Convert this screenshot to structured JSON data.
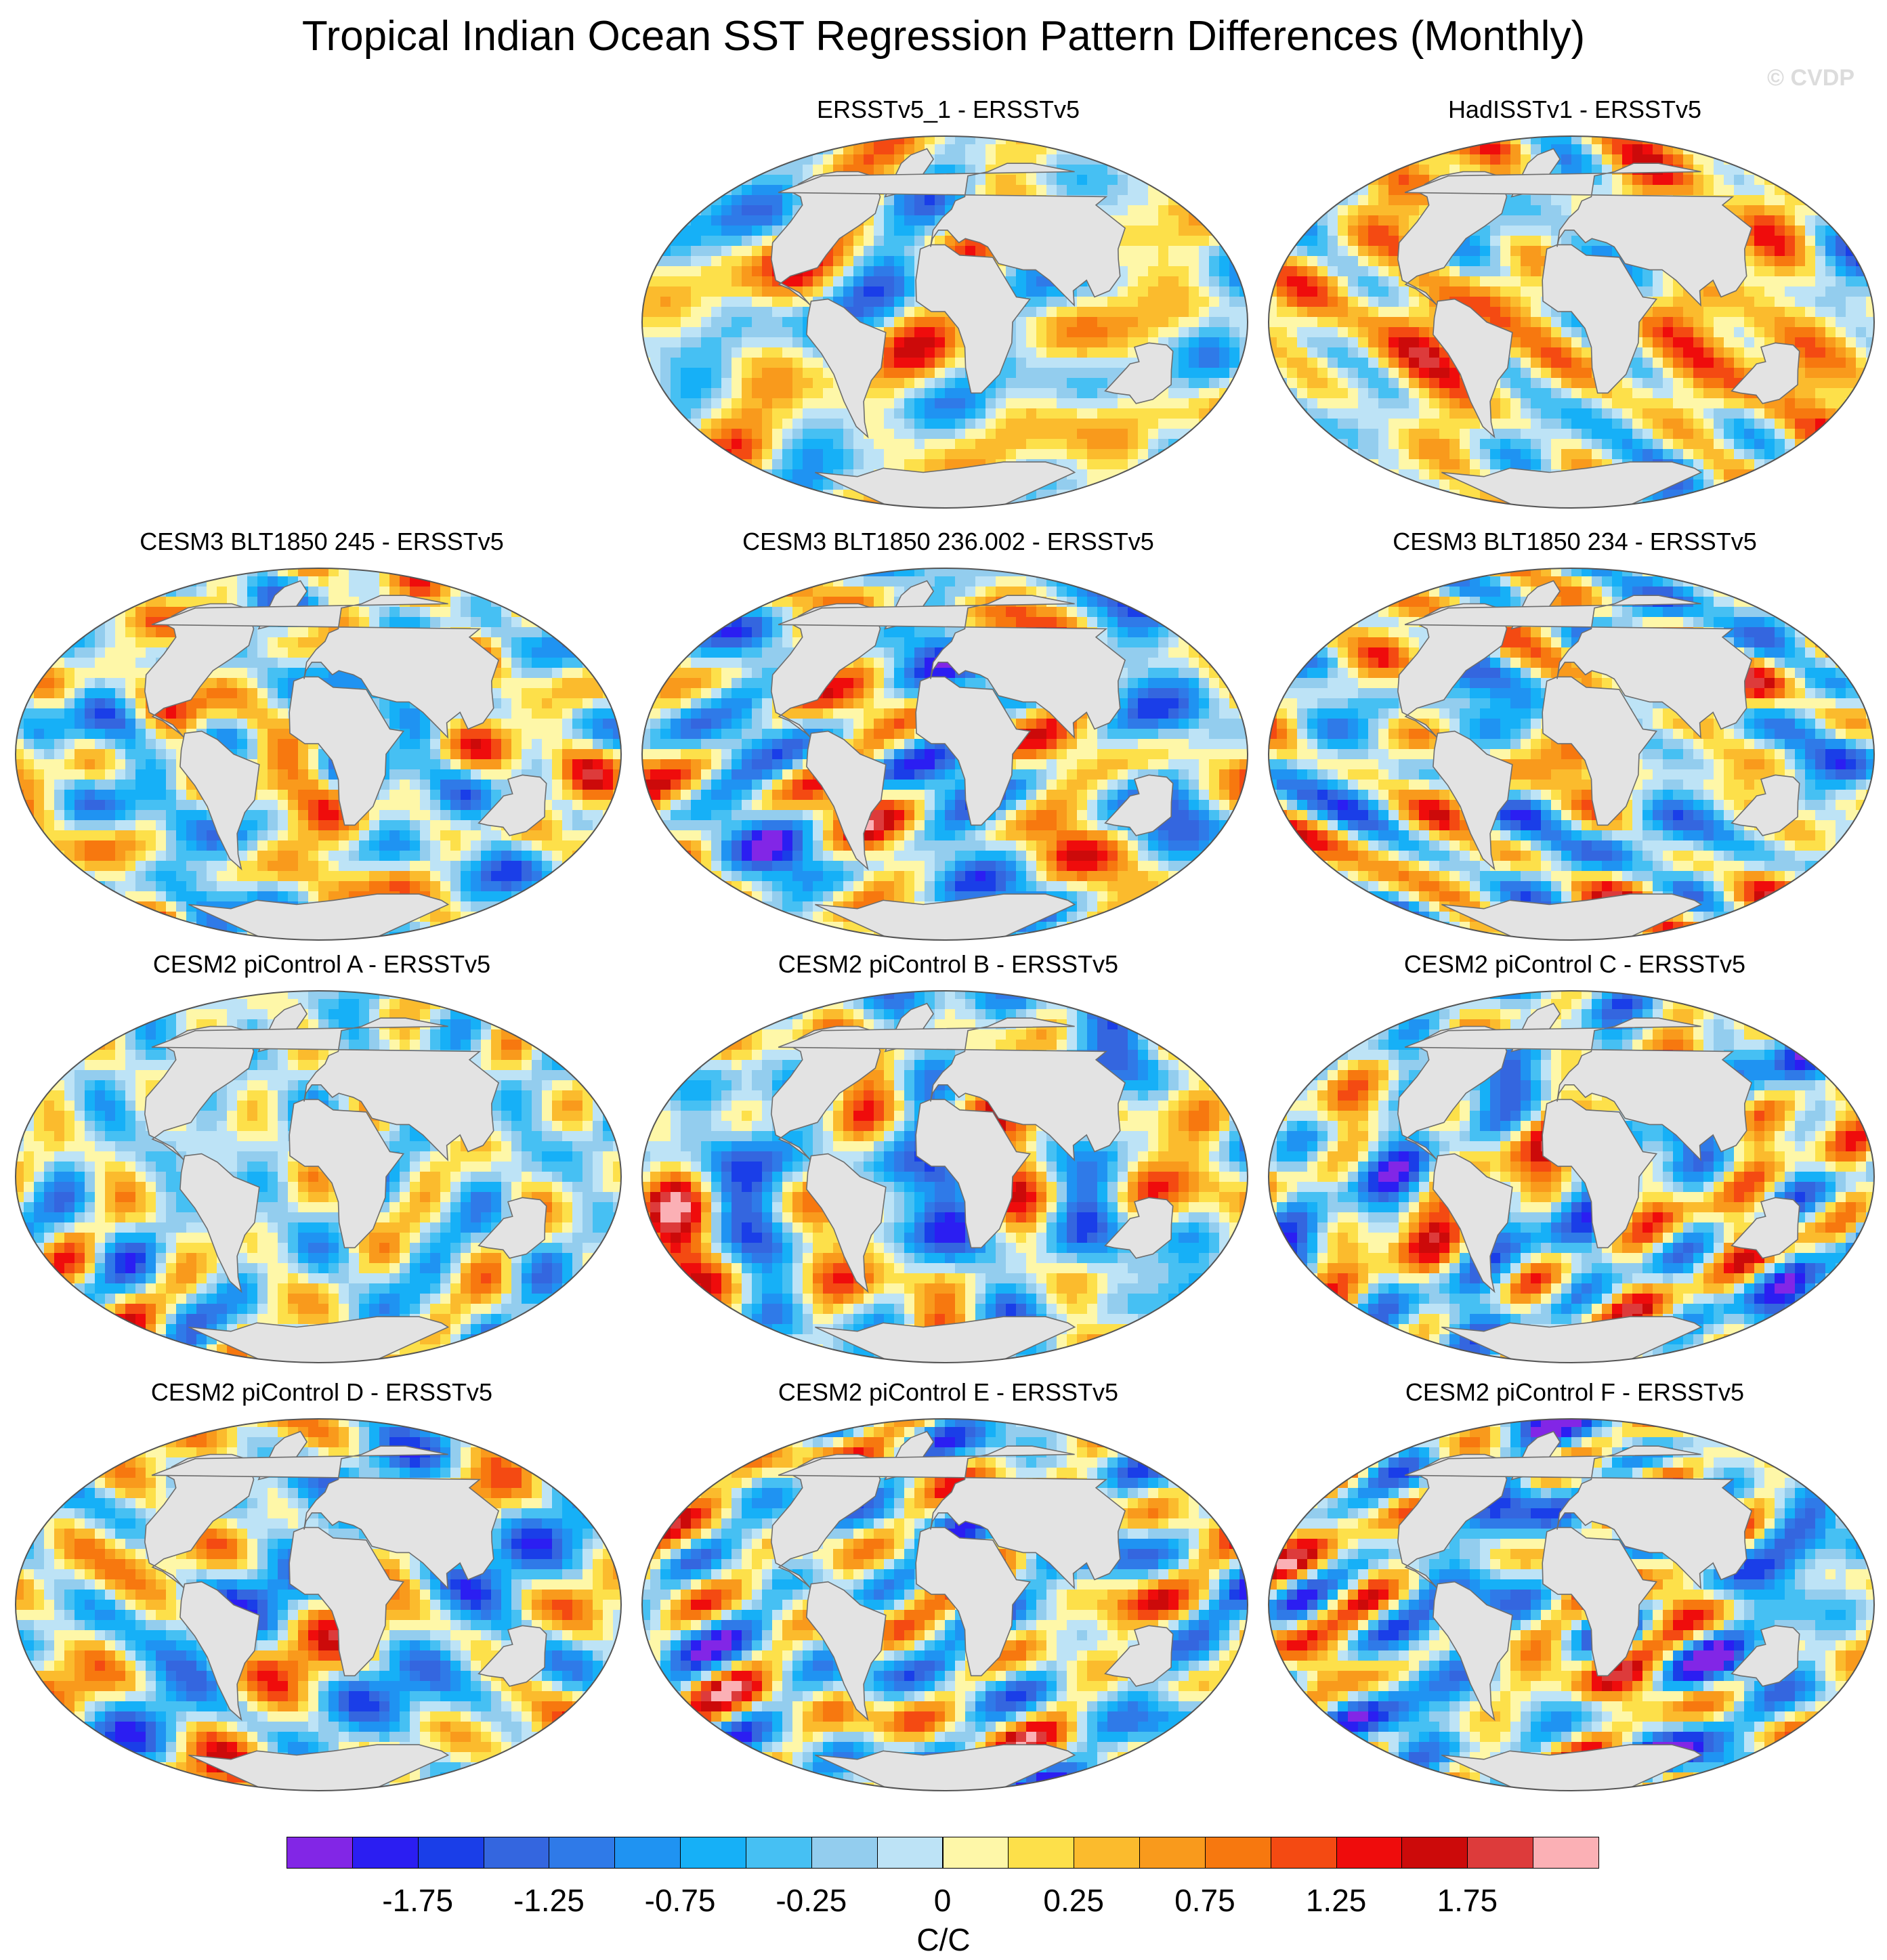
{
  "title": "Tropical Indian Ocean SST Regression Pattern Differences (Monthly)",
  "watermark": "© CVDP",
  "panels": [
    {
      "title": "ERSSTv5_1 - ERSSTv5",
      "seed": 3,
      "bias": 0.05
    },
    {
      "title": "HadISSTv1 - ERSSTv5",
      "seed": 11,
      "bias": 0.25
    },
    {
      "title": "CESM3 BLT1850 245 - ERSSTv5",
      "seed": 19,
      "bias": -0.05
    },
    {
      "title": "CESM3 BLT1850 236.002 - ERSSTv5",
      "seed": 27,
      "bias": -0.15
    },
    {
      "title": "CESM3 BLT1850 234 - ERSSTv5",
      "seed": 35,
      "bias": -0.1
    },
    {
      "title": "CESM2 piControl A - ERSSTv5",
      "seed": 43,
      "bias": -0.2
    },
    {
      "title": "CESM2 piControl B - ERSSTv5",
      "seed": 51,
      "bias": -0.2
    },
    {
      "title": "CESM2 piControl C - ERSSTv5",
      "seed": 59,
      "bias": -0.15
    },
    {
      "title": "CESM2 piControl D - ERSSTv5",
      "seed": 67,
      "bias": -0.2
    },
    {
      "title": "CESM2 piControl E - ERSSTv5",
      "seed": 75,
      "bias": -0.15
    },
    {
      "title": "CESM2 piControl F - ERSSTv5",
      "seed": 83,
      "bias": -0.2
    }
  ],
  "colorbar": {
    "unit": "C/C",
    "tick_labels": [
      "-1.75",
      "-1.25",
      "-0.75",
      "-0.25",
      "0",
      "0.25",
      "0.75",
      "1.25",
      "1.75"
    ],
    "colors": [
      "#8226e6",
      "#2b1ef2",
      "#1a3ee8",
      "#3466df",
      "#2f7ae8",
      "#1f93f2",
      "#16b0f7",
      "#46c0f3",
      "#93cdee",
      "#bde3f6",
      "#fef7a8",
      "#fde04a",
      "#fbbb2d",
      "#f99a1c",
      "#f7780f",
      "#f44a12",
      "#ef0c0c",
      "#cc0a0a",
      "#dd3b3b",
      "#fbb0b5"
    ]
  }
}
